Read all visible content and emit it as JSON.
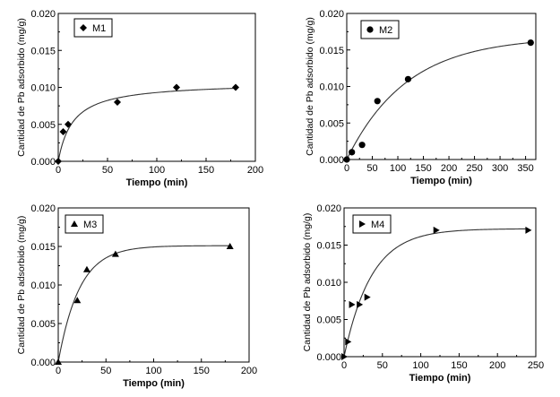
{
  "chart_data": [
    {
      "type": "scatter",
      "xlabel": "Tiempo (min)",
      "ylabel": "Cantidad de Pb adsorbido (mg/g)",
      "xlim": [
        0,
        200
      ],
      "ylim": [
        0,
        0.02
      ],
      "xticks": [
        "0",
        "50",
        "100",
        "150",
        "200"
      ],
      "yticks": [
        "0.000",
        "0.005",
        "0.010",
        "0.015",
        "0.020"
      ],
      "legend_position": "top-left",
      "series": [
        {
          "name": "M1",
          "marker": "diamond",
          "x": [
            0,
            5,
            10,
            60,
            120,
            180
          ],
          "y": [
            0,
            0.004,
            0.005,
            0.008,
            0.01,
            0.01
          ]
        }
      ],
      "fit": {
        "model": "y = a*x/(b+x)",
        "a": 0.0107,
        "b": 15
      }
    },
    {
      "type": "scatter",
      "xlabel": "Tiempo (min)",
      "ylabel": "Cantidad de Pb adsorbido (mg/g)",
      "xlim": [
        0,
        370
      ],
      "ylim": [
        0,
        0.02
      ],
      "xticks": [
        "0",
        "50",
        "100",
        "150",
        "200",
        "250",
        "300",
        "350"
      ],
      "yticks": [
        "0.000",
        "0.005",
        "0.010",
        "0.015",
        "0.020"
      ],
      "legend_position": "top-left",
      "series": [
        {
          "name": "M2",
          "marker": "circle",
          "x": [
            0,
            10,
            30,
            60,
            120,
            360
          ],
          "y": [
            0,
            0.001,
            0.002,
            0.008,
            0.011,
            0.016
          ]
        }
      ],
      "fit": {
        "model": "y = a*(1-exp(-k*x))",
        "a": 0.0168,
        "k": 0.0085
      }
    },
    {
      "type": "scatter",
      "xlabel": "Tiempo (min)",
      "ylabel": "Cantidad de Pb adsorbido (mg/g)",
      "xlim": [
        0,
        200
      ],
      "ylim": [
        0,
        0.02
      ],
      "xticks": [
        "0",
        "50",
        "100",
        "150",
        "200"
      ],
      "yticks": [
        "0.000",
        "0.005",
        "0.010",
        "0.015",
        "0.020"
      ],
      "legend_position": "top-left",
      "series": [
        {
          "name": "M3",
          "marker": "triangle-up",
          "x": [
            0,
            20,
            30,
            60,
            180
          ],
          "y": [
            0,
            0.008,
            0.012,
            0.014,
            0.015
          ]
        }
      ],
      "fit": {
        "model": "y = a*(1-exp(-k*x))",
        "a": 0.0151,
        "k": 0.045
      }
    },
    {
      "type": "scatter",
      "xlabel": "Tiempo (min)",
      "ylabel": "Cantidad de Pb adsorbido (mg/g)",
      "xlim": [
        0,
        250
      ],
      "ylim": [
        0,
        0.02
      ],
      "xticks": [
        "0",
        "50",
        "100",
        "150",
        "200",
        "250"
      ],
      "yticks": [
        "0.000",
        "0.005",
        "0.010",
        "0.015",
        "0.020"
      ],
      "legend_position": "top-left",
      "series": [
        {
          "name": "M4",
          "marker": "triangle-right",
          "x": [
            0,
            5,
            10,
            20,
            30,
            120,
            240
          ],
          "y": [
            0,
            0.002,
            0.007,
            0.007,
            0.008,
            0.017,
            0.017
          ]
        }
      ],
      "fit": {
        "model": "y = a*(1-exp(-k*x))",
        "a": 0.0172,
        "k": 0.028
      }
    }
  ]
}
